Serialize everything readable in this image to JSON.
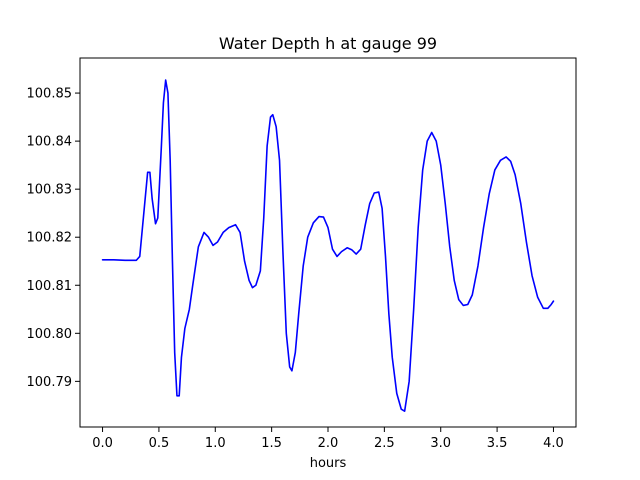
{
  "chart_data": {
    "type": "line",
    "title": "Water Depth h at gauge 99",
    "xlabel": "hours",
    "ylabel": "",
    "xlim": [
      -0.2,
      4.2
    ],
    "ylim": [
      100.7805,
      100.8573
    ],
    "grid": false,
    "xticks": [
      0.0,
      0.5,
      1.0,
      1.5,
      2.0,
      2.5,
      3.0,
      3.5,
      4.0
    ],
    "xtick_labels": [
      "0.0",
      "0.5",
      "1.0",
      "1.5",
      "2.0",
      "2.5",
      "3.0",
      "3.5",
      "4.0"
    ],
    "yticks": [
      100.79,
      100.8,
      100.81,
      100.82,
      100.83,
      100.84,
      100.85
    ],
    "ytick_labels": [
      "100.79",
      "100.80",
      "100.81",
      "100.82",
      "100.83",
      "100.84",
      "100.85"
    ],
    "series": [
      {
        "name": "",
        "color": "#0000ff",
        "points": [
          [
            0.0,
            100.8153
          ],
          [
            0.1,
            100.8153
          ],
          [
            0.2,
            100.8152
          ],
          [
            0.3,
            100.8152
          ],
          [
            0.33,
            100.816
          ],
          [
            0.37,
            100.826
          ],
          [
            0.4,
            100.8335
          ],
          [
            0.42,
            100.8335
          ],
          [
            0.44,
            100.828
          ],
          [
            0.47,
            100.8228
          ],
          [
            0.49,
            100.824
          ],
          [
            0.52,
            100.838
          ],
          [
            0.54,
            100.848
          ],
          [
            0.56,
            100.8527
          ],
          [
            0.58,
            100.85
          ],
          [
            0.6,
            100.836
          ],
          [
            0.62,
            100.815
          ],
          [
            0.64,
            100.796
          ],
          [
            0.66,
            100.787
          ],
          [
            0.68,
            100.787
          ],
          [
            0.7,
            100.795
          ],
          [
            0.73,
            100.801
          ],
          [
            0.77,
            100.805
          ],
          [
            0.8,
            100.81
          ],
          [
            0.85,
            100.818
          ],
          [
            0.9,
            100.821
          ],
          [
            0.94,
            100.82
          ],
          [
            0.98,
            100.8183
          ],
          [
            1.02,
            100.819
          ],
          [
            1.07,
            100.821
          ],
          [
            1.12,
            100.822
          ],
          [
            1.18,
            100.8226
          ],
          [
            1.22,
            100.821
          ],
          [
            1.26,
            100.815
          ],
          [
            1.3,
            100.811
          ],
          [
            1.33,
            100.8095
          ],
          [
            1.36,
            100.81
          ],
          [
            1.4,
            100.813
          ],
          [
            1.43,
            100.824
          ],
          [
            1.46,
            100.839
          ],
          [
            1.49,
            100.845
          ],
          [
            1.51,
            100.8455
          ],
          [
            1.54,
            100.843
          ],
          [
            1.57,
            100.836
          ],
          [
            1.6,
            100.817
          ],
          [
            1.63,
            100.8
          ],
          [
            1.66,
            100.793
          ],
          [
            1.68,
            100.7922
          ],
          [
            1.71,
            100.796
          ],
          [
            1.74,
            100.804
          ],
          [
            1.78,
            100.814
          ],
          [
            1.82,
            100.82
          ],
          [
            1.87,
            100.823
          ],
          [
            1.92,
            100.8243
          ],
          [
            1.96,
            100.8242
          ],
          [
            2.0,
            100.822
          ],
          [
            2.04,
            100.8175
          ],
          [
            2.08,
            100.816
          ],
          [
            2.12,
            100.817
          ],
          [
            2.17,
            100.8178
          ],
          [
            2.21,
            100.8174
          ],
          [
            2.25,
            100.8165
          ],
          [
            2.29,
            100.8175
          ],
          [
            2.33,
            100.8225
          ],
          [
            2.37,
            100.827
          ],
          [
            2.41,
            100.8292
          ],
          [
            2.45,
            100.8294
          ],
          [
            2.48,
            100.826
          ],
          [
            2.51,
            100.816
          ],
          [
            2.54,
            100.804
          ],
          [
            2.57,
            100.795
          ],
          [
            2.61,
            100.7875
          ],
          [
            2.65,
            100.7842
          ],
          [
            2.68,
            100.7838
          ],
          [
            2.72,
            100.79
          ],
          [
            2.76,
            100.805
          ],
          [
            2.8,
            100.822
          ],
          [
            2.84,
            100.834
          ],
          [
            2.88,
            100.84
          ],
          [
            2.92,
            100.8418
          ],
          [
            2.96,
            100.84
          ],
          [
            3.0,
            100.835
          ],
          [
            3.04,
            100.827
          ],
          [
            3.08,
            100.818
          ],
          [
            3.12,
            100.811
          ],
          [
            3.16,
            100.807
          ],
          [
            3.2,
            100.8058
          ],
          [
            3.24,
            100.806
          ],
          [
            3.28,
            100.808
          ],
          [
            3.33,
            100.814
          ],
          [
            3.38,
            100.822
          ],
          [
            3.43,
            100.829
          ],
          [
            3.48,
            100.834
          ],
          [
            3.53,
            100.836
          ],
          [
            3.58,
            100.8367
          ],
          [
            3.62,
            100.8358
          ],
          [
            3.66,
            100.833
          ],
          [
            3.71,
            100.827
          ],
          [
            3.76,
            100.819
          ],
          [
            3.81,
            100.812
          ],
          [
            3.86,
            100.8075
          ],
          [
            3.91,
            100.8052
          ],
          [
            3.95,
            100.8052
          ],
          [
            3.98,
            100.806
          ],
          [
            4.0,
            100.8067
          ]
        ]
      }
    ]
  }
}
